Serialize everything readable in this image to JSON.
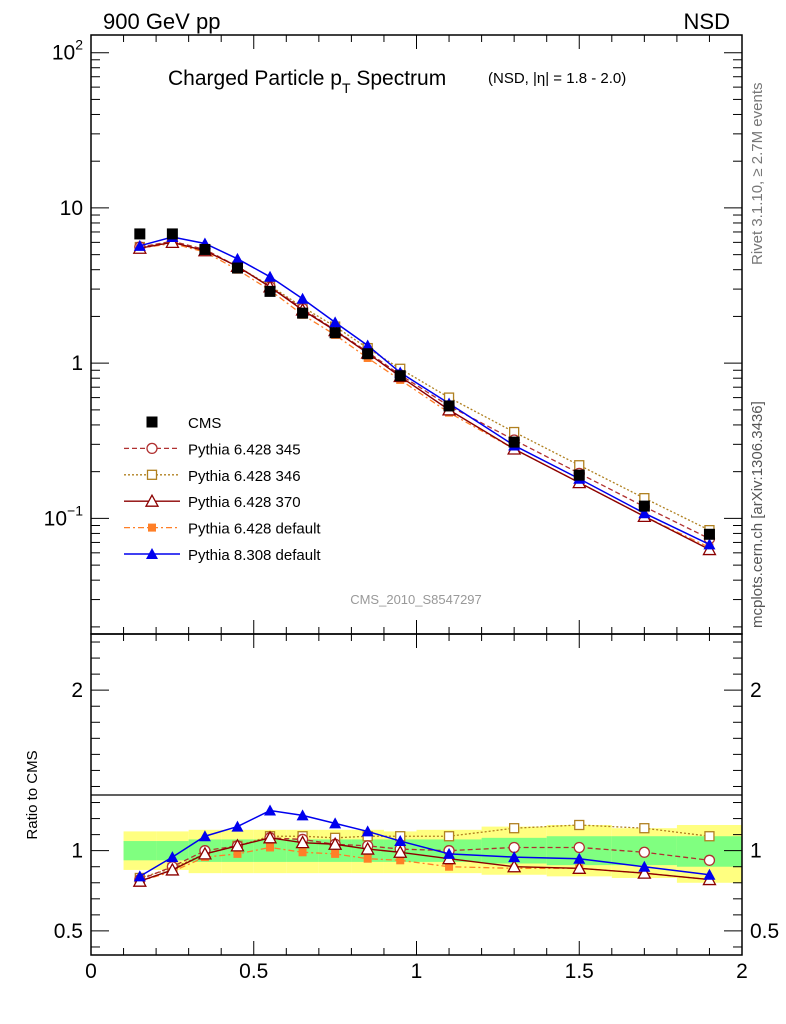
{
  "header": {
    "left": "900 GeV pp",
    "right": "NSD"
  },
  "side_labels": {
    "rivet": "Rivet 3.1.10, ≥ 2.7M events",
    "source": "mcplots.cern.ch [arXiv:1306.3436]"
  },
  "colors": {
    "cms": "#000000",
    "p345": "#b03030",
    "p346": "#b08020",
    "p370": "#8b0000",
    "pdef": "#ff7f27",
    "p8": "#0000ee",
    "band_outer": "#ffff80",
    "band_inner": "#80ff80"
  },
  "chart_data": [
    {
      "type": "line",
      "title_main": "Charged Particle p",
      "title_sub": "T",
      "title_rest": " Spectrum",
      "title_note": "(NSD, |η| = 1.8 - 2.0)",
      "watermark": "CMS_2010_S8547297",
      "yscale": "log",
      "xlim": [
        0,
        2
      ],
      "ylim": [
        0.018,
        130
      ],
      "y_ticks": [
        {
          "v": 100,
          "base": "10",
          "exp": "2"
        },
        {
          "v": 10,
          "base": "10",
          "exp": ""
        },
        {
          "v": 1,
          "base": "1",
          "exp": ""
        },
        {
          "v": 0.1,
          "base": "10",
          "exp": "−1"
        }
      ],
      "legend_position": "left-center",
      "x": [
        0.15,
        0.25,
        0.35,
        0.45,
        0.55,
        0.65,
        0.75,
        0.85,
        0.95,
        1.1,
        1.3,
        1.5,
        1.7,
        1.9
      ],
      "series": [
        {
          "key": "cms",
          "name": "CMS",
          "marker": "square-filled",
          "line": "none",
          "values": [
            6.8,
            6.8,
            5.4,
            4.1,
            2.9,
            2.1,
            1.57,
            1.15,
            0.83,
            0.53,
            0.31,
            0.19,
            0.12,
            0.079
          ]
        },
        {
          "key": "p345",
          "name": "Pythia 6.428 345",
          "marker": "circle-open",
          "line": "dashed",
          "values": [
            5.6,
            6.1,
            5.4,
            4.2,
            3.1,
            2.25,
            1.63,
            1.18,
            0.84,
            0.53,
            0.32,
            0.195,
            0.119,
            0.074
          ]
        },
        {
          "key": "p346",
          "name": "Pythia 6.428 346",
          "marker": "square-open",
          "line": "dotted",
          "values": [
            5.6,
            6.0,
            5.3,
            4.2,
            3.15,
            2.3,
            1.72,
            1.25,
            0.92,
            0.6,
            0.36,
            0.22,
            0.135,
            0.084
          ]
        },
        {
          "key": "p370",
          "name": "Pythia 6.428 370",
          "marker": "triangle-open",
          "line": "solid",
          "values": [
            5.5,
            6.0,
            5.3,
            4.2,
            3.1,
            2.2,
            1.62,
            1.16,
            0.82,
            0.5,
            0.28,
            0.17,
            0.103,
            0.063
          ]
        },
        {
          "key": "pdef",
          "name": "Pythia 6.428 default",
          "marker": "square-filled-small",
          "line": "dashdot",
          "values": [
            5.5,
            5.9,
            5.2,
            4.0,
            2.95,
            2.05,
            1.52,
            1.08,
            0.78,
            0.48,
            0.28,
            0.17,
            0.103,
            0.065
          ]
        },
        {
          "key": "p8",
          "name": "Pythia 8.308 default",
          "marker": "triangle-filled",
          "line": "solid",
          "values": [
            5.7,
            6.5,
            5.9,
            4.7,
            3.6,
            2.6,
            1.83,
            1.3,
            0.87,
            0.55,
            0.295,
            0.18,
            0.108,
            0.068
          ]
        }
      ]
    },
    {
      "type": "line",
      "ylabel": "Ratio to CMS",
      "xlim": [
        0,
        2
      ],
      "ylim": [
        0.35,
        2.35
      ],
      "x_ticks": [
        {
          "v": 0,
          "label": "0"
        },
        {
          "v": 0.5,
          "label": "0.5"
        },
        {
          "v": 1,
          "label": "1"
        },
        {
          "v": 1.5,
          "label": "1.5"
        },
        {
          "v": 2,
          "label": "2"
        }
      ],
      "y_ticks": [
        {
          "v": 0.5,
          "label": "0.5"
        },
        {
          "v": 1,
          "label": "1"
        },
        {
          "v": 2,
          "label": "2"
        }
      ],
      "bands": {
        "edges": [
          0.1,
          0.2,
          0.3,
          0.4,
          0.5,
          0.6,
          0.7,
          0.8,
          0.9,
          1.0,
          1.2,
          1.4,
          1.6,
          1.8,
          2.0
        ],
        "outer": [
          [
            0.88,
            1.12
          ],
          [
            0.88,
            1.12
          ],
          [
            0.86,
            1.13
          ],
          [
            0.86,
            1.13
          ],
          [
            0.86,
            1.13
          ],
          [
            0.86,
            1.13
          ],
          [
            0.86,
            1.13
          ],
          [
            0.86,
            1.13
          ],
          [
            0.86,
            1.12
          ],
          [
            0.86,
            1.13
          ],
          [
            0.85,
            1.15
          ],
          [
            0.84,
            1.16
          ],
          [
            0.83,
            1.14
          ],
          [
            0.8,
            1.16
          ]
        ],
        "inner": [
          [
            0.94,
            1.06
          ],
          [
            0.94,
            1.06
          ],
          [
            0.93,
            1.07
          ],
          [
            0.93,
            1.07
          ],
          [
            0.93,
            1.07
          ],
          [
            0.93,
            1.07
          ],
          [
            0.93,
            1.07
          ],
          [
            0.93,
            1.07
          ],
          [
            0.93,
            1.07
          ],
          [
            0.93,
            1.07
          ],
          [
            0.92,
            1.08
          ],
          [
            0.91,
            1.09
          ],
          [
            0.91,
            1.09
          ],
          [
            0.9,
            1.09
          ]
        ]
      },
      "series": [
        {
          "key": "p345",
          "values": [
            0.82,
            0.9,
            1.0,
            1.03,
            1.08,
            1.07,
            1.04,
            1.03,
            1.01,
            1.0,
            1.02,
            1.02,
            0.99,
            0.94
          ]
        },
        {
          "key": "p346",
          "values": [
            0.83,
            0.89,
            0.98,
            1.03,
            1.09,
            1.09,
            1.08,
            1.09,
            1.09,
            1.09,
            1.14,
            1.16,
            1.14,
            1.09
          ]
        },
        {
          "key": "p370",
          "values": [
            0.81,
            0.88,
            0.98,
            1.03,
            1.08,
            1.05,
            1.04,
            1.01,
            0.99,
            0.95,
            0.9,
            0.89,
            0.86,
            0.82
          ]
        },
        {
          "key": "pdef",
          "values": [
            0.81,
            0.87,
            0.96,
            0.98,
            1.02,
            0.99,
            0.98,
            0.95,
            0.94,
            0.9,
            0.89,
            0.89,
            0.86,
            0.82
          ]
        },
        {
          "key": "p8",
          "values": [
            0.84,
            0.96,
            1.09,
            1.15,
            1.25,
            1.22,
            1.17,
            1.12,
            1.06,
            0.98,
            0.96,
            0.95,
            0.9,
            0.85
          ]
        }
      ]
    }
  ]
}
